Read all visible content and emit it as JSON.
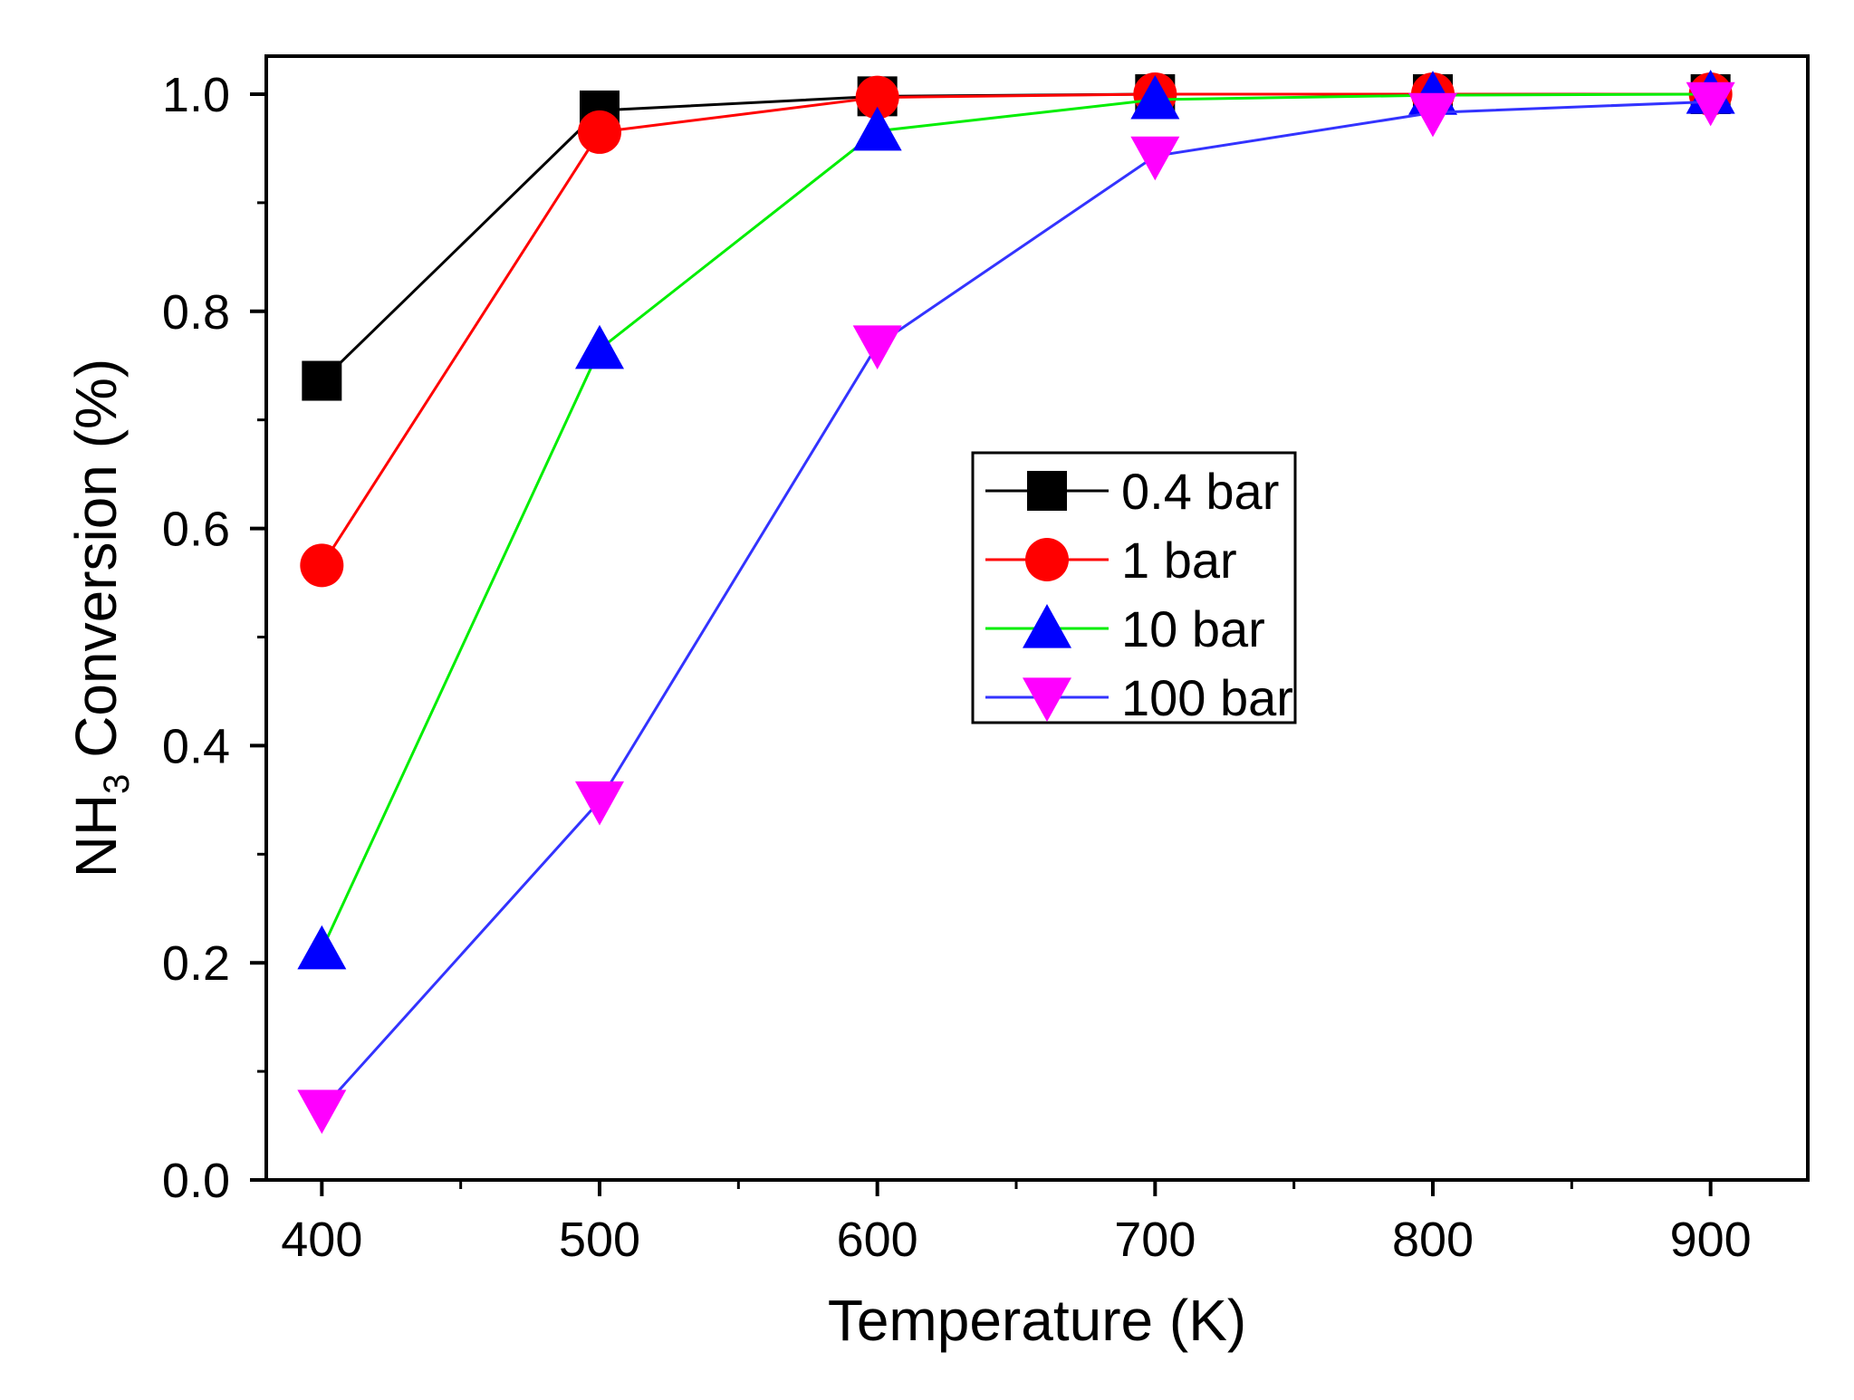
{
  "chart_data": {
    "type": "line",
    "title": "",
    "xlabel": "Temperature (K)",
    "ylabel_main": "NH",
    "ylabel_sub": "3",
    "ylabel_rest": " Conversion (%)",
    "xlim": [
      380,
      935
    ],
    "ylim": [
      0.0,
      1.035
    ],
    "x_ticks": [
      400,
      500,
      600,
      700,
      800,
      900
    ],
    "x_tick_labels": [
      "400",
      "500",
      "600",
      "700",
      "800",
      "900"
    ],
    "x_minor_ticks": [
      450,
      550,
      650,
      750,
      850
    ],
    "y_ticks": [
      0.0,
      0.2,
      0.4,
      0.6,
      0.8,
      1.0
    ],
    "y_tick_labels": [
      "0.0",
      "0.2",
      "0.4",
      "0.6",
      "0.8",
      "1.0"
    ],
    "y_minor_ticks": [
      0.1,
      0.3,
      0.5,
      0.7,
      0.9
    ],
    "x": [
      400,
      500,
      600,
      700,
      800,
      900
    ],
    "legend_position": "center-right",
    "series": [
      {
        "name": "0.4 bar",
        "color": "#000000",
        "marker_color": "#000000",
        "marker": "square",
        "values": [
          0.736,
          0.985,
          0.998,
          1.0,
          1.0,
          1.0
        ]
      },
      {
        "name": "1 bar",
        "color": "#ff0000",
        "marker_color": "#ff0000",
        "marker": "circle",
        "values": [
          0.566,
          0.965,
          0.997,
          1.0,
          1.0,
          1.0
        ]
      },
      {
        "name": "10 bar",
        "color": "#00ee00",
        "marker_color": "#0000ff",
        "marker": "triangle-up",
        "values": [
          0.212,
          0.765,
          0.966,
          0.995,
          0.999,
          1.0
        ]
      },
      {
        "name": "100 bar",
        "color": "#3333ff",
        "marker_color": "#ff00ff",
        "marker": "triangle-down",
        "values": [
          0.065,
          0.349,
          0.769,
          0.943,
          0.983,
          0.993
        ]
      }
    ]
  }
}
